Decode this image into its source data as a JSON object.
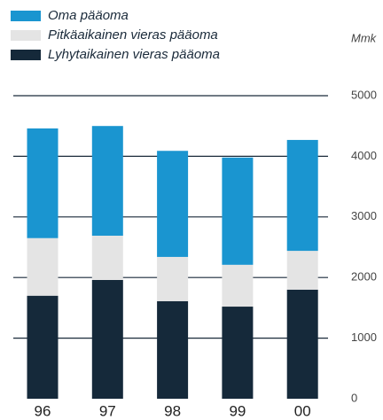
{
  "chart_data": {
    "type": "stacked_bar",
    "y_unit": "Mmk",
    "categories": [
      "96",
      "97",
      "98",
      "99",
      "00"
    ],
    "series": [
      {
        "name": "Oma pääoma",
        "color": "#1a95d0",
        "values": [
          1810,
          1810,
          1750,
          1770,
          1830
        ]
      },
      {
        "name": "Pitkäaikainen vieras pääoma",
        "color": "#e4e4e4",
        "values": [
          950,
          730,
          730,
          690,
          640
        ]
      },
      {
        "name": "Lyhytaikainen vieras pääoma",
        "color": "#15293a",
        "values": [
          1700,
          1960,
          1610,
          1520,
          1800
        ]
      }
    ],
    "ylim": [
      0,
      5000
    ],
    "yticks": [
      0,
      1000,
      2000,
      3000,
      4000,
      5000
    ],
    "grid": true,
    "legend": "top-left"
  }
}
